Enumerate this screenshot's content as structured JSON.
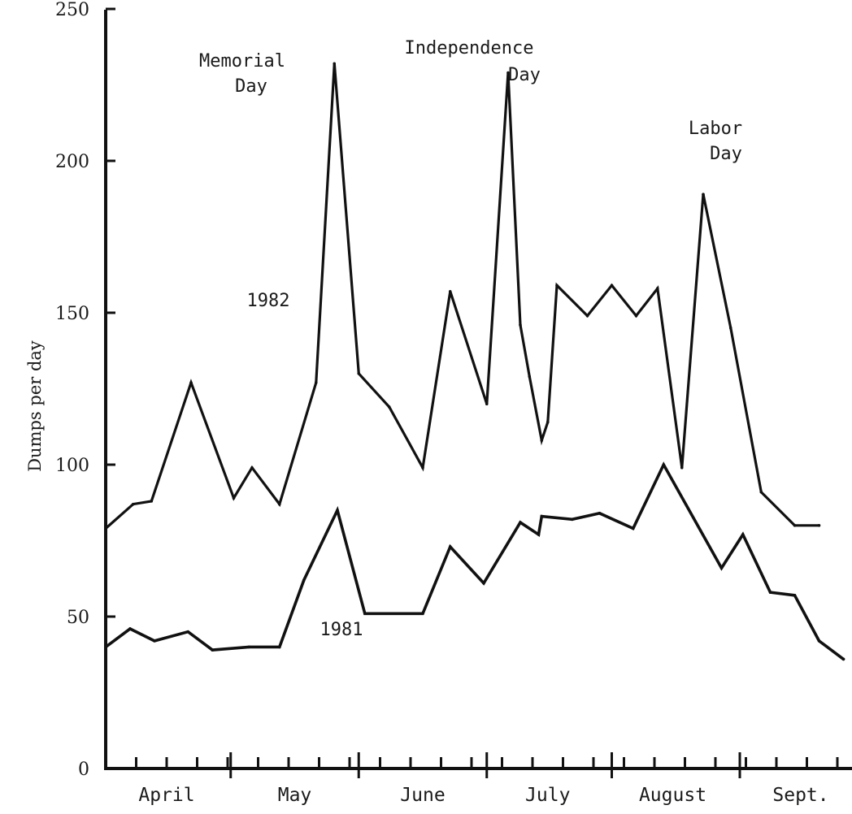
{
  "chart_data": {
    "type": "line",
    "title": "",
    "ylabel": "Dumps per day",
    "xlabel": "",
    "ylim": [
      0,
      250
    ],
    "yticks": [
      0,
      50,
      100,
      150,
      200,
      250
    ],
    "grid": false,
    "x_unit": "weeks (April through September)",
    "months": [
      "April",
      "May",
      "June",
      "July",
      "August",
      "Sept."
    ],
    "series": [
      {
        "name": "1982",
        "x": [
          0,
          0.9,
          1.5,
          2.8,
          4.2,
          4.8,
          5.7,
          6.9,
          7.5,
          8.3,
          9.3,
          10.4,
          11.3,
          12.5,
          13.2,
          13.6,
          13.9,
          14.3,
          14.5,
          14.8,
          15.8,
          16.6,
          17.4,
          18.1,
          18.9,
          19.6,
          20.5,
          21.5,
          22.6,
          23.4
        ],
        "values": [
          79,
          87,
          88,
          127,
          89,
          99,
          87,
          127,
          232,
          130,
          119,
          99,
          157,
          120,
          229,
          146,
          129,
          108,
          114,
          159,
          149,
          159,
          149,
          158,
          99,
          189,
          145,
          91,
          80,
          80
        ]
      },
      {
        "name": "1981",
        "x": [
          0,
          0.8,
          1.6,
          2.7,
          3.5,
          4.7,
          5.7,
          6.5,
          7.6,
          8.5,
          9.5,
          10.4,
          11.3,
          12.4,
          13.6,
          14.2,
          14.3,
          15.3,
          16.2,
          17.3,
          18.3,
          20.2,
          20.9,
          21.8,
          22.6,
          23.4,
          24.2
        ],
        "values": [
          40,
          46,
          42,
          45,
          39,
          40,
          40,
          62,
          85,
          51,
          51,
          51,
          73,
          61,
          81,
          77,
          83,
          82,
          84,
          79,
          100,
          66,
          77,
          58,
          57,
          42,
          36
        ]
      }
    ],
    "annotations": {
      "memorial": [
        "Memorial",
        "Day"
      ],
      "independence": [
        "Independence",
        "Day"
      ],
      "labor": [
        "Labor",
        "Day"
      ],
      "label_1982": "1982",
      "label_1981": "1981"
    }
  }
}
